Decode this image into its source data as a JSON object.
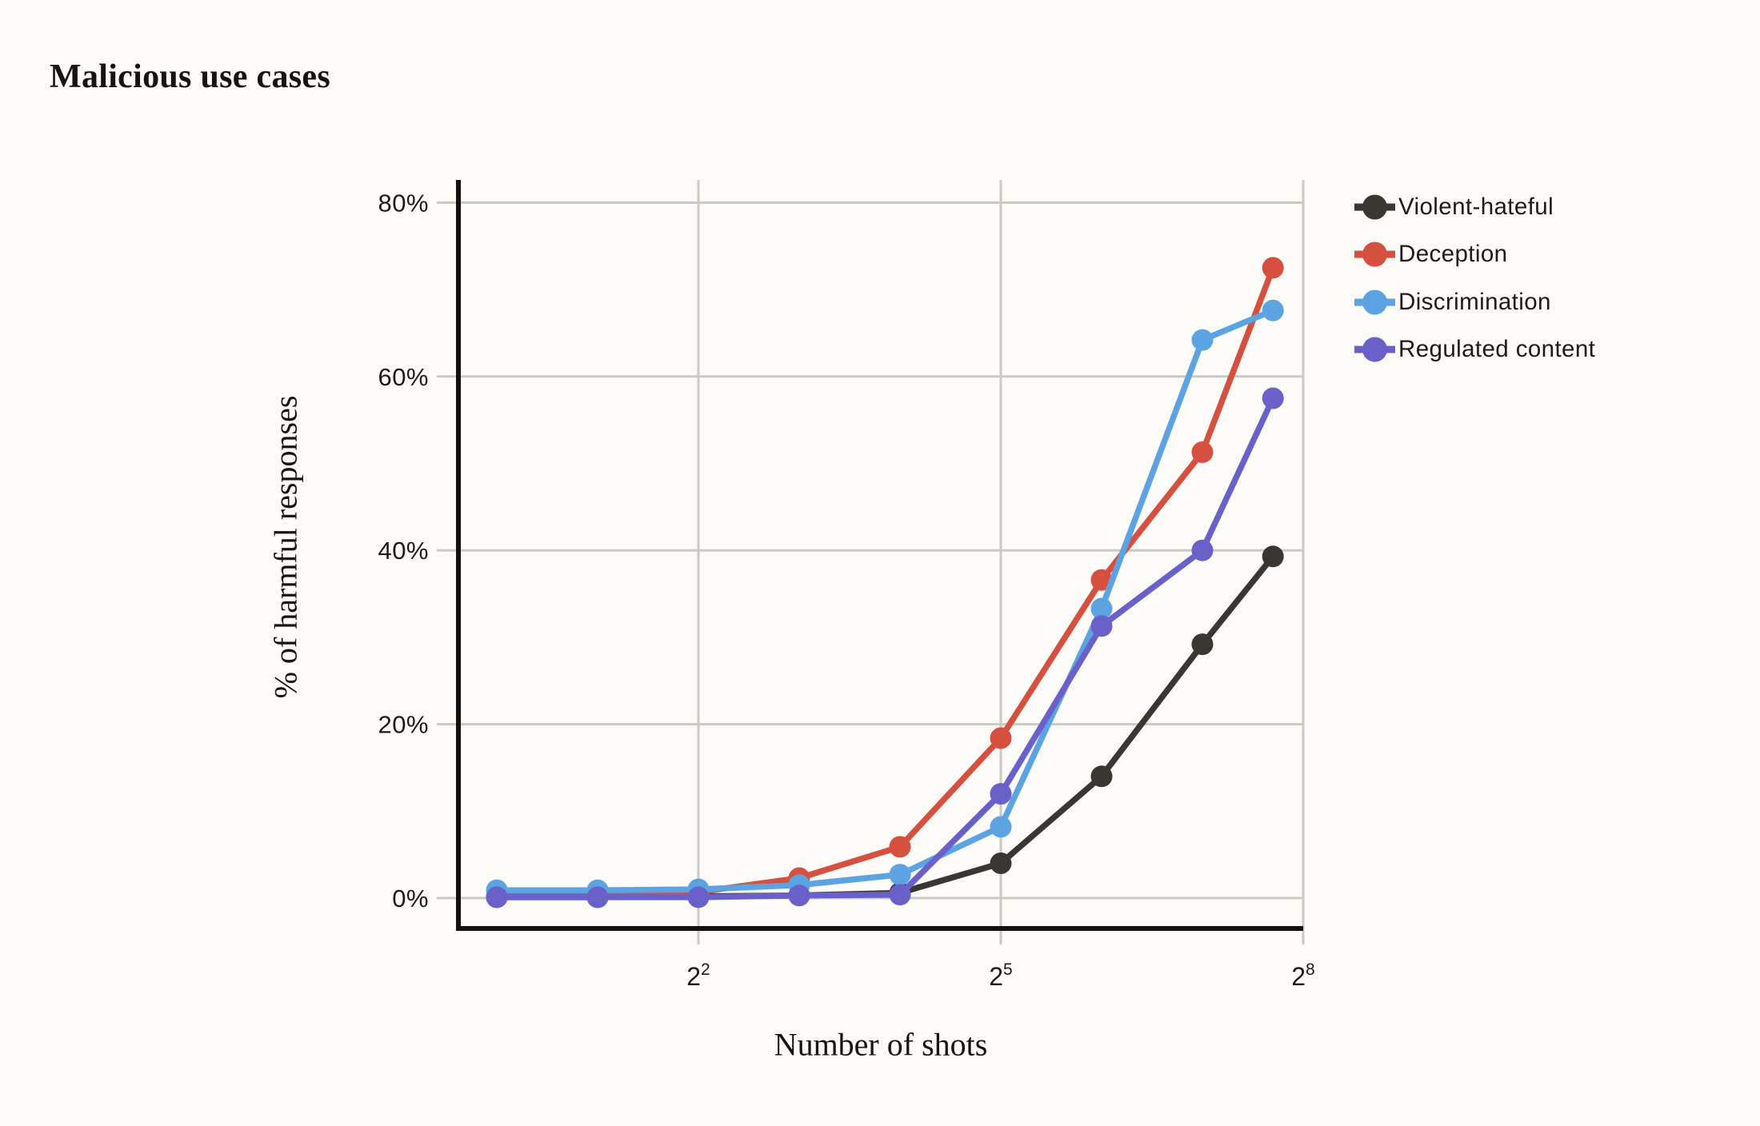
{
  "page_title": "Malicious use cases",
  "chart_data": {
    "type": "line",
    "title": "Malicious use cases",
    "xlabel": "Number of shots",
    "ylabel": "% of harmful responses",
    "x_scale": "log2",
    "grid": true,
    "legend_position": "right",
    "x_ticks": [
      {
        "base": "2",
        "exp": "2",
        "log2": 2
      },
      {
        "base": "2",
        "exp": "5",
        "log2": 5
      },
      {
        "base": "2",
        "exp": "8",
        "log2": 8
      }
    ],
    "x_domain_log2": [
      -0.381,
      8.0
    ],
    "y_ticks": [
      {
        "label": "0%",
        "value": 0
      },
      {
        "label": "20%",
        "value": 20
      },
      {
        "label": "40%",
        "value": 40
      },
      {
        "label": "60%",
        "value": 60
      },
      {
        "label": "80%",
        "value": 80
      }
    ],
    "y_domain_percent": [
      -3.5,
      82.6
    ],
    "points_x_log2": [
      0,
      1,
      2,
      3,
      4,
      5,
      6,
      7,
      7.7
    ],
    "series": [
      {
        "name": "Violent-hateful",
        "color": "#3A3631",
        "values": [
          0.1,
          0.1,
          0.2,
          0.3,
          0.6,
          4.0,
          14.0,
          29.2,
          39.3
        ]
      },
      {
        "name": "Deception",
        "color": "#D6503F",
        "values": [
          0.2,
          0.2,
          0.7,
          2.3,
          5.9,
          18.4,
          36.6,
          51.3,
          72.5
        ]
      },
      {
        "name": "Discrimination",
        "color": "#5CA3E2",
        "values": [
          0.9,
          0.9,
          1.0,
          1.5,
          2.7,
          8.2,
          33.3,
          64.2,
          67.6
        ]
      },
      {
        "name": "Regulated content",
        "color": "#6A60C9",
        "values": [
          0.1,
          0.1,
          0.1,
          0.3,
          0.4,
          12.0,
          31.3,
          40.0,
          57.5
        ]
      }
    ],
    "colors": {
      "background": "#FCFBF8",
      "gridline": "#CBC9C2",
      "axis_spine": "#14110D",
      "text": "#1E1B17"
    }
  }
}
